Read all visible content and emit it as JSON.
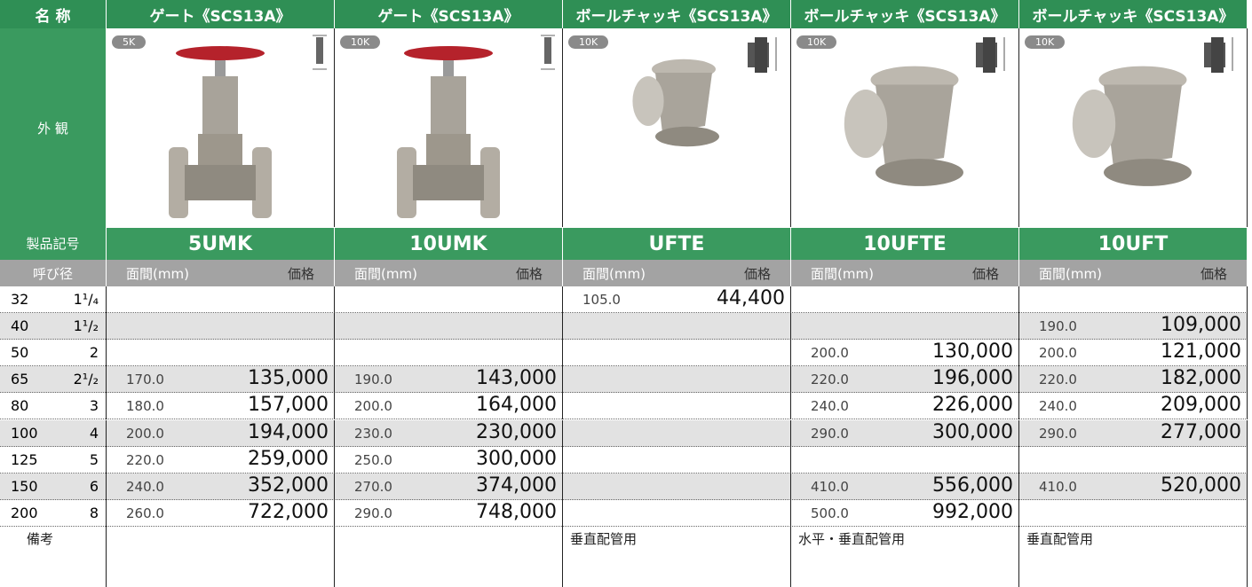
{
  "header": {
    "name_label": "名 称",
    "columns": [
      "ゲート《SCS13A》",
      "ゲート《SCS13A》",
      "ボールチャッキ《SCS13A》",
      "ボールチャッキ《SCS13A》",
      "ボールチャッキ《SCS13A》"
    ]
  },
  "appearance_label": "外 観",
  "badges": [
    "5K",
    "10K",
    "10K",
    "10K",
    "10K"
  ],
  "code_label": "製品記号",
  "codes": [
    "5UMK",
    "10UMK",
    "UFTE",
    "10UFTE",
    "10UFT"
  ],
  "subheader": {
    "size_label": "呼び径",
    "face_label": "面間(mm)",
    "price_label": "価格"
  },
  "rows": [
    {
      "mm": "32",
      "inch": "1¹/₄",
      "cells": [
        null,
        null,
        {
          "face": "105.0",
          "price": "44,400"
        },
        null,
        null
      ]
    },
    {
      "mm": "40",
      "inch": "1¹/₂",
      "cells": [
        null,
        null,
        null,
        null,
        {
          "face": "190.0",
          "price": "109,000"
        }
      ]
    },
    {
      "mm": "50",
      "inch": "2",
      "cells": [
        null,
        null,
        null,
        {
          "face": "200.0",
          "price": "130,000"
        },
        {
          "face": "200.0",
          "price": "121,000"
        }
      ]
    },
    {
      "mm": "65",
      "inch": "2¹/₂",
      "cells": [
        {
          "face": "170.0",
          "price": "135,000"
        },
        {
          "face": "190.0",
          "price": "143,000"
        },
        null,
        {
          "face": "220.0",
          "price": "196,000"
        },
        {
          "face": "220.0",
          "price": "182,000"
        }
      ]
    },
    {
      "mm": "80",
      "inch": "3",
      "cells": [
        {
          "face": "180.0",
          "price": "157,000"
        },
        {
          "face": "200.0",
          "price": "164,000"
        },
        null,
        {
          "face": "240.0",
          "price": "226,000"
        },
        {
          "face": "240.0",
          "price": "209,000"
        }
      ]
    },
    {
      "mm": "100",
      "inch": "4",
      "cells": [
        {
          "face": "200.0",
          "price": "194,000"
        },
        {
          "face": "230.0",
          "price": "230,000"
        },
        null,
        {
          "face": "290.0",
          "price": "300,000"
        },
        {
          "face": "290.0",
          "price": "277,000"
        }
      ]
    },
    {
      "mm": "125",
      "inch": "5",
      "cells": [
        {
          "face": "220.0",
          "price": "259,000"
        },
        {
          "face": "250.0",
          "price": "300,000"
        },
        null,
        null,
        null
      ]
    },
    {
      "mm": "150",
      "inch": "6",
      "cells": [
        {
          "face": "240.0",
          "price": "352,000"
        },
        {
          "face": "270.0",
          "price": "374,000"
        },
        null,
        {
          "face": "410.0",
          "price": "556,000"
        },
        {
          "face": "410.0",
          "price": "520,000"
        }
      ]
    },
    {
      "mm": "200",
      "inch": "8",
      "cells": [
        {
          "face": "260.0",
          "price": "722,000"
        },
        {
          "face": "290.0",
          "price": "748,000"
        },
        null,
        {
          "face": "500.0",
          "price": "992,000"
        },
        null
      ]
    }
  ],
  "remarks_label": "備考",
  "remarks": [
    null,
    null,
    "垂直配管用",
    "水平・垂直配管用",
    "垂直配管用"
  ]
}
